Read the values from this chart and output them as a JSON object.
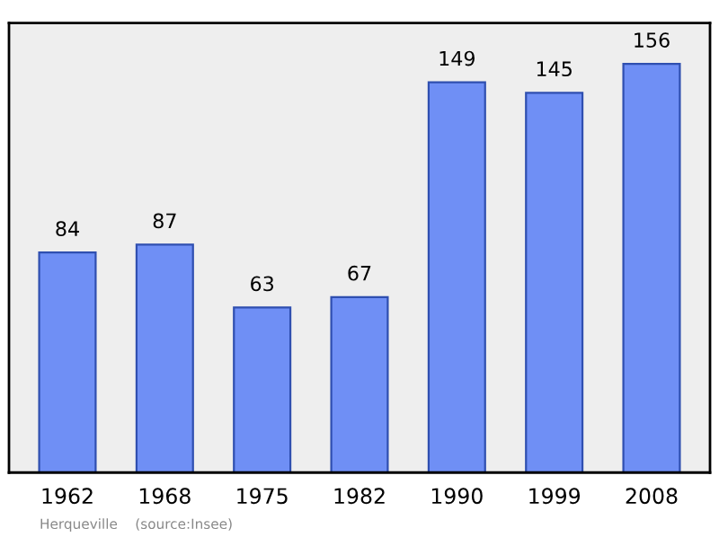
{
  "chart_data": {
    "type": "bar",
    "categories": [
      "1962",
      "1968",
      "1975",
      "1982",
      "1990",
      "1999",
      "2008"
    ],
    "values": [
      84,
      87,
      63,
      67,
      149,
      145,
      156
    ],
    "color": "#6f8ff5",
    "data_labels": true,
    "grid": false,
    "annotations": [
      "Herqueville    (source:Insee)"
    ]
  }
}
